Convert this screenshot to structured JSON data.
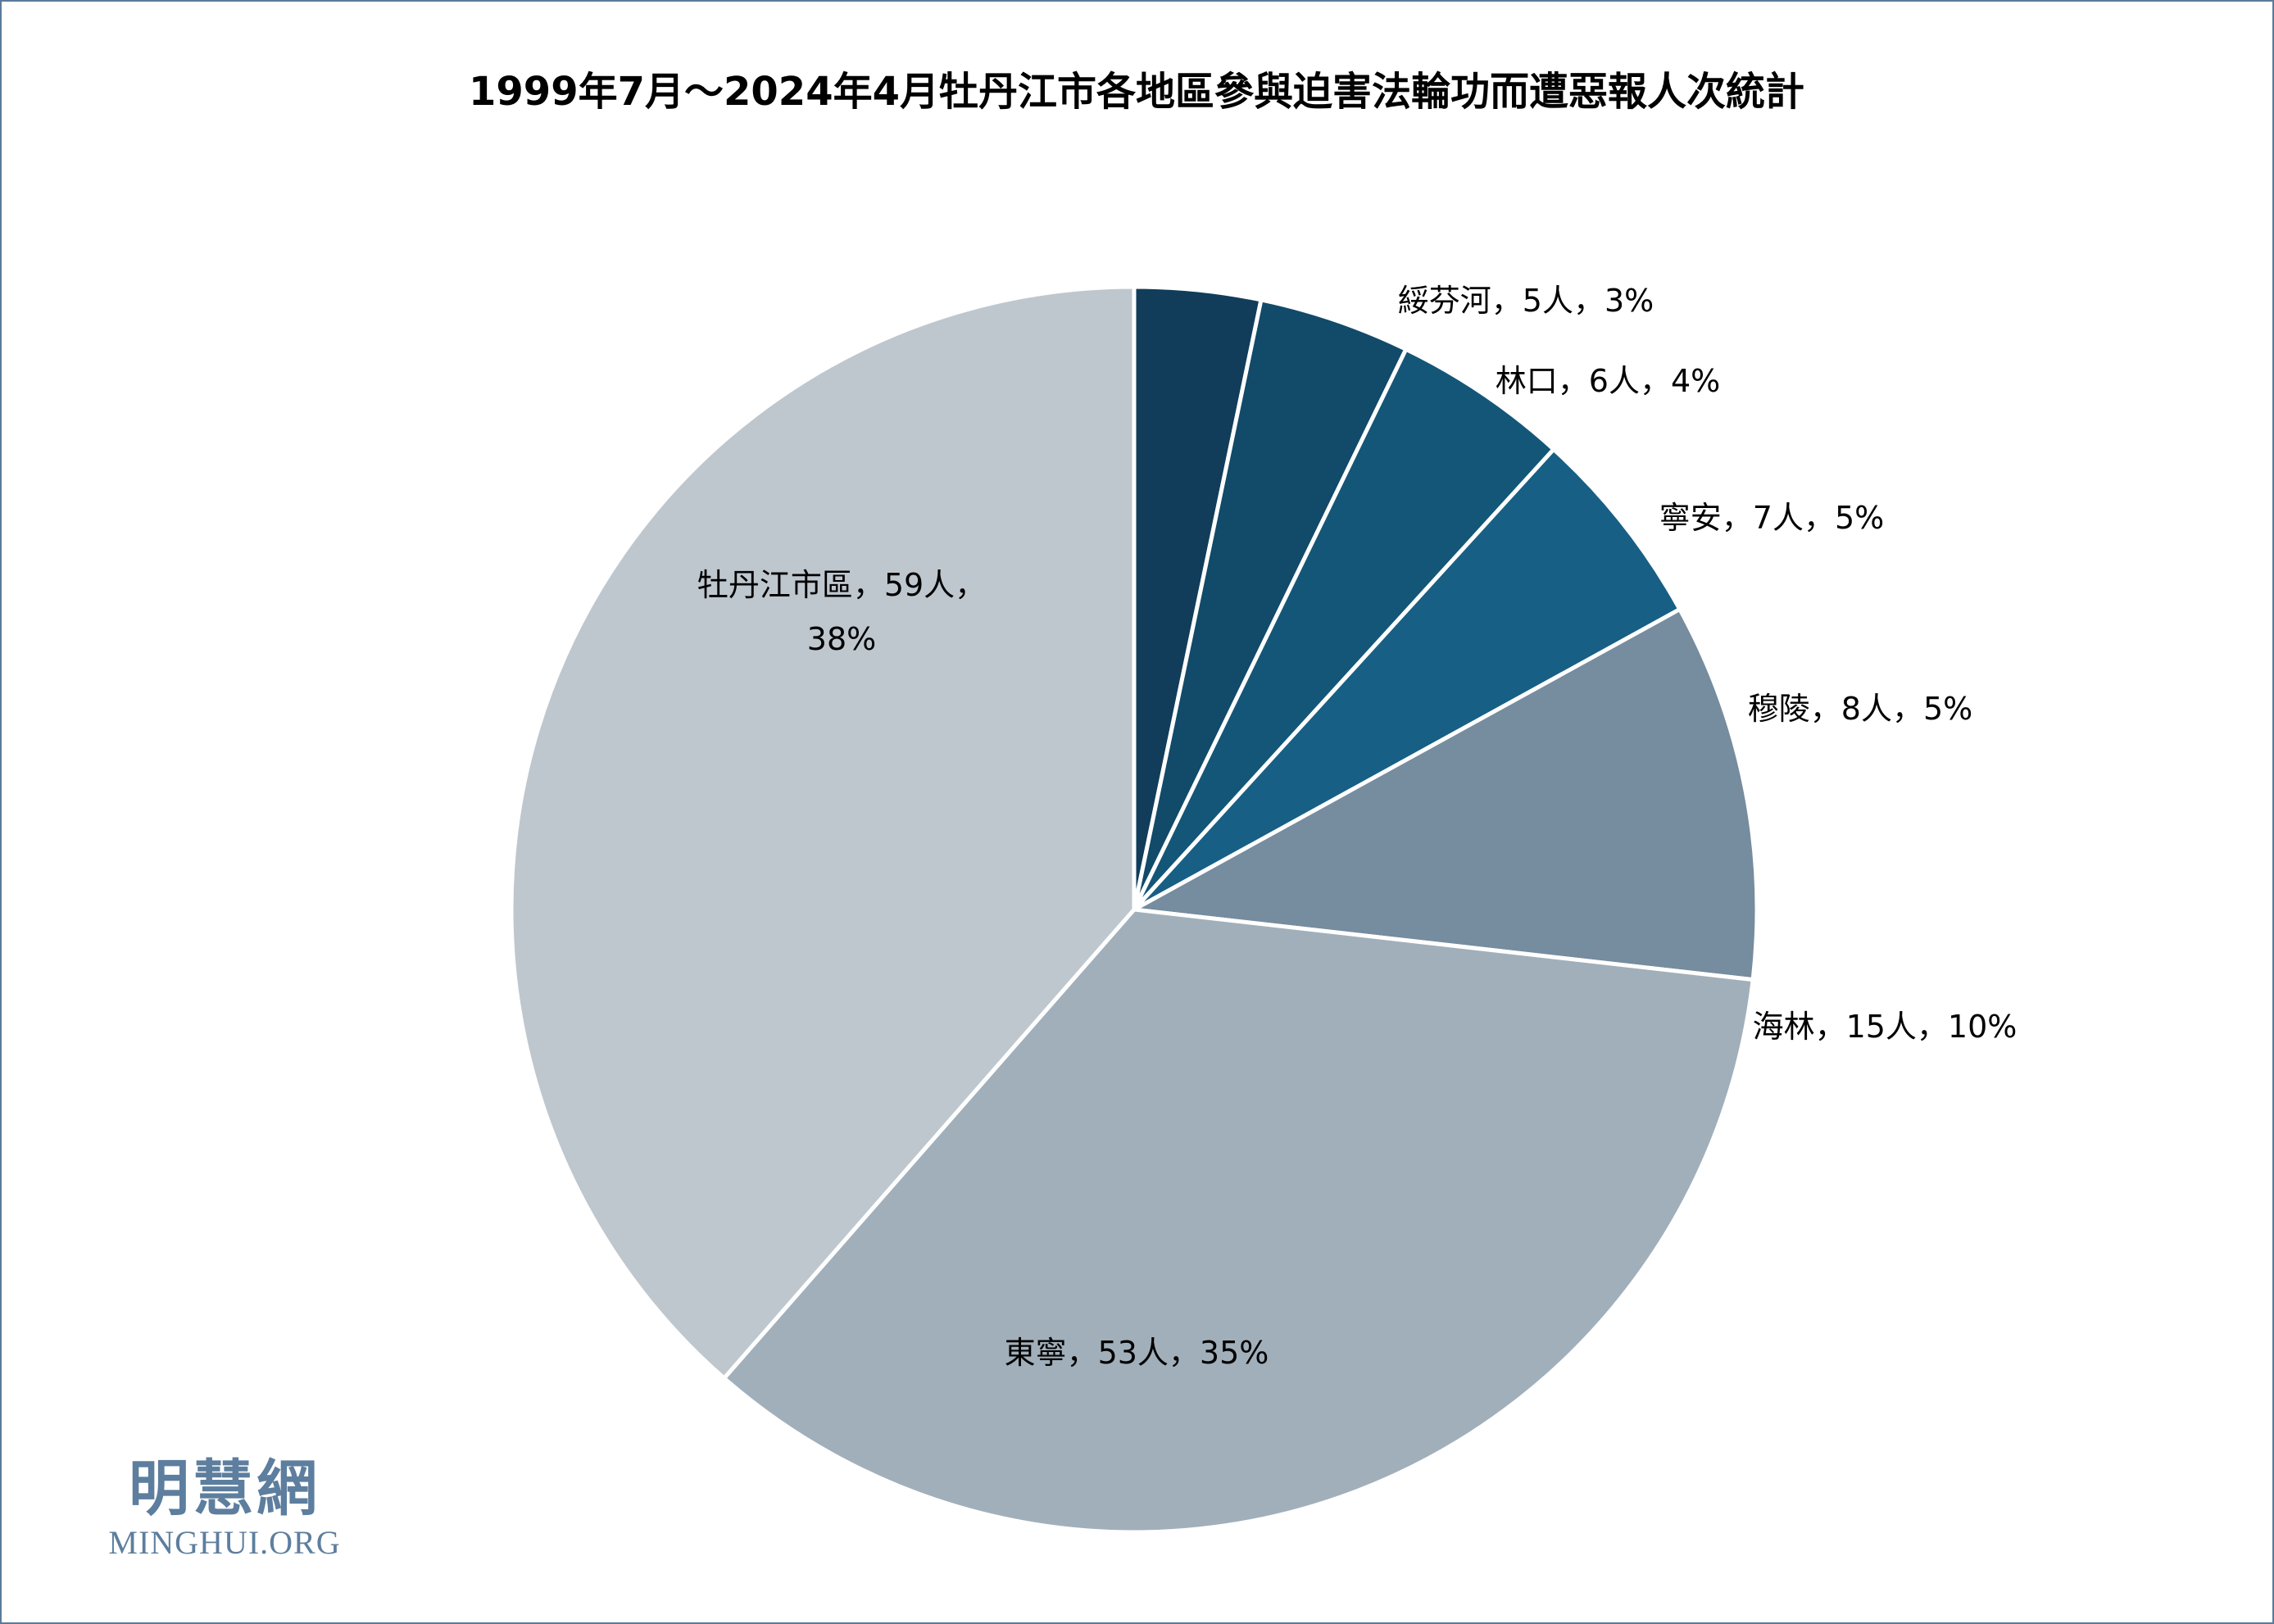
{
  "chart_data": {
    "type": "pie",
    "title": "1999年7月～2024年4月牡丹江市各地區參與迫害法輪功而遭惡報人次統計",
    "slices": [
      {
        "name": "綏芬河",
        "value": 5,
        "percent": "3%",
        "label": "綏芬河，5人，3%",
        "color": "#113d5a"
      },
      {
        "name": "林口",
        "value": 6,
        "percent": "4%",
        "label": "林口，6人，4%",
        "color": "#124a69"
      },
      {
        "name": "寧安",
        "value": 7,
        "percent": "5%",
        "label": "寧安，7人，5%",
        "color": "#145677"
      },
      {
        "name": "穆陵",
        "value": 8,
        "percent": "5%",
        "label": "穆陵，8人，5%",
        "color": "#175f84"
      },
      {
        "name": "海林",
        "value": 15,
        "percent": "10%",
        "label": "海林，15人，10%",
        "color": "#768c9f"
      },
      {
        "name": "東寧",
        "value": 53,
        "percent": "35%",
        "label": "東寧，53人，35%",
        "color": "#a1afba"
      },
      {
        "name": "牡丹江市區",
        "value": 59,
        "percent": "38%",
        "label": [
          "牡丹江市區，59人，",
          "38%"
        ],
        "color": "#bfc7ce"
      }
    ],
    "start": "12 o'clock, clockwise"
  },
  "watermark": {
    "chinese": "明慧網",
    "english": "MINGHUI.ORG",
    "color": "#5d7e9e"
  }
}
